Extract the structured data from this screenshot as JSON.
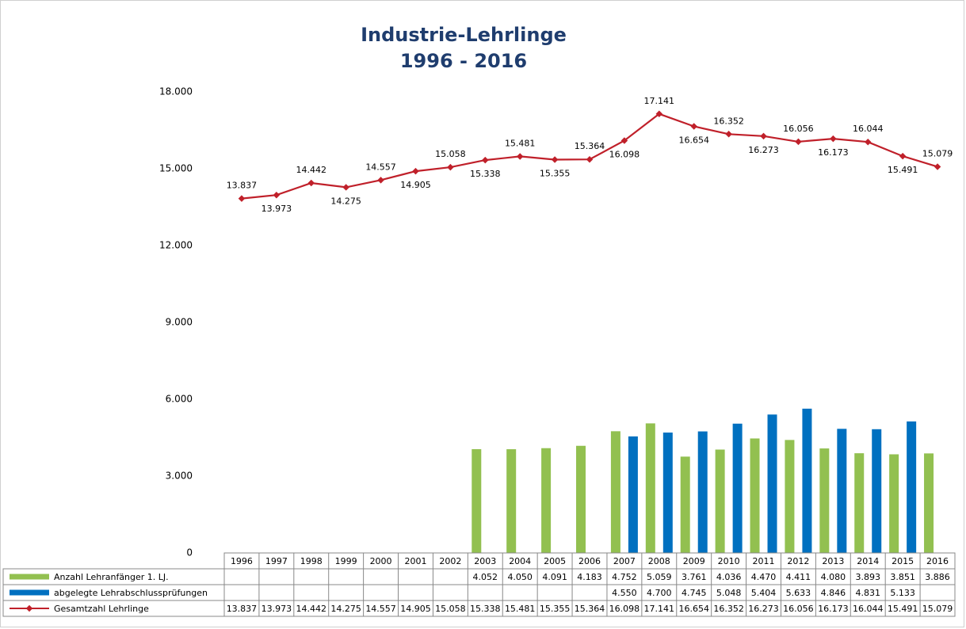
{
  "chart_data": {
    "type": "bar_line_table",
    "title": "Industrie-Lehrlinge",
    "subtitle": "1996 - 2016",
    "categories": [
      "1996",
      "1997",
      "1998",
      "1999",
      "2000",
      "2001",
      "2002",
      "2003",
      "2004",
      "2005",
      "2006",
      "2007",
      "2008",
      "2009",
      "2010",
      "2011",
      "2012",
      "2013",
      "2014",
      "2015",
      "2016"
    ],
    "ylim": [
      0,
      18000
    ],
    "yticks": [
      0,
      {
        "value": 3000,
        "label": "3.000"
      },
      {
        "value": 6000,
        "label": "6.000"
      },
      {
        "value": 9000,
        "label": "9.000"
      },
      {
        "value": 12000,
        "label": "12.000"
      },
      {
        "value": 15000,
        "label": "15.000"
      },
      {
        "value": 18000,
        "label": "18.000"
      }
    ],
    "series": [
      {
        "name": "Anzahl Lehranfänger 1. LJ.",
        "type": "bar",
        "color": "#92c050",
        "values": [
          null,
          null,
          null,
          null,
          null,
          null,
          null,
          4052,
          4050,
          4091,
          4183,
          4752,
          5059,
          3761,
          4036,
          4470,
          4411,
          4080,
          3893,
          3851,
          3886
        ],
        "value_labels": [
          null,
          null,
          null,
          null,
          null,
          null,
          null,
          "4.052",
          "4.050",
          "4.091",
          "4.183",
          "4.752",
          "5.059",
          "3.761",
          "4.036",
          "4.470",
          "4.411",
          "4.080",
          "3.893",
          "3.851",
          "3.886"
        ]
      },
      {
        "name": "abgelegte Lehrabschlussprüfungen",
        "type": "bar",
        "color": "#0070c0",
        "values": [
          null,
          null,
          null,
          null,
          null,
          null,
          null,
          null,
          null,
          null,
          null,
          4550,
          4700,
          4745,
          5048,
          5404,
          5633,
          4846,
          4831,
          5133,
          null
        ],
        "value_labels": [
          null,
          null,
          null,
          null,
          null,
          null,
          null,
          null,
          null,
          null,
          null,
          "4.550",
          "4.700",
          "4.745",
          "5.048",
          "5.404",
          "5.633",
          "4.846",
          "4.831",
          "5.133",
          null
        ]
      },
      {
        "name": "Gesamtzahl Lehrlinge",
        "type": "line",
        "color": "#c0202a",
        "values": [
          13837,
          13973,
          14442,
          14275,
          14557,
          14905,
          15058,
          15338,
          15481,
          15355,
          15364,
          16098,
          17141,
          16654,
          16352,
          16273,
          16056,
          16173,
          16044,
          15491,
          15079
        ],
        "value_labels": [
          "13.837",
          "13.973",
          "14.442",
          "14.275",
          "14.557",
          "14.905",
          "15.058",
          "15.338",
          "15.481",
          "15.355",
          "15.364",
          "16.098",
          "17.141",
          "16.654",
          "16.352",
          "16.273",
          "16.056",
          "16.173",
          "16.044",
          "15.491",
          "15.079"
        ]
      }
    ]
  }
}
